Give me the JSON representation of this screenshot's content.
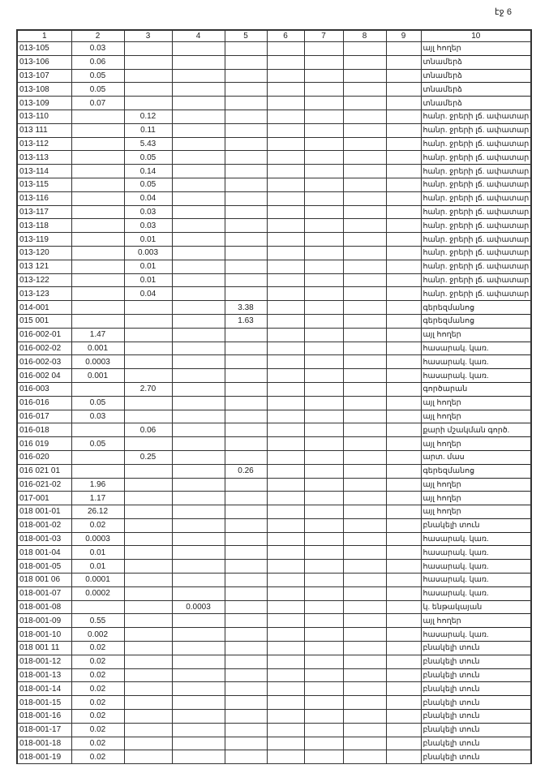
{
  "page_number": "էջ 6",
  "columns": [
    "1",
    "2",
    "3",
    "4",
    "5",
    "6",
    "7",
    "8",
    "9",
    "10"
  ],
  "rows": [
    [
      "013-105",
      "0.03",
      "",
      "",
      "",
      "",
      "",
      "",
      "",
      "այլ հողեր"
    ],
    [
      "013-106",
      "0.06",
      "",
      "",
      "",
      "",
      "",
      "",
      "",
      "տնամերձ"
    ],
    [
      "013-107",
      "0.05",
      "",
      "",
      "",
      "",
      "",
      "",
      "",
      "տնամերձ"
    ],
    [
      "013-108",
      "0.05",
      "",
      "",
      "",
      "",
      "",
      "",
      "",
      "տնամերձ"
    ],
    [
      "013-109",
      "0.07",
      "",
      "",
      "",
      "",
      "",
      "",
      "",
      "տնամերձ"
    ],
    [
      "013-110",
      "",
      "0.12",
      "",
      "",
      "",
      "",
      "",
      "",
      "հանր. ջրերի լճ. ափատար"
    ],
    [
      "013 111",
      "",
      "0.11",
      "",
      "",
      "",
      "",
      "",
      "",
      "հանր. ջրերի լճ. ափատար"
    ],
    [
      "013-112",
      "",
      "5.43",
      "",
      "",
      "",
      "",
      "",
      "",
      "հանր. ջրերի լճ. ափատար"
    ],
    [
      "013-113",
      "",
      "0.05",
      "",
      "",
      "",
      "",
      "",
      "",
      "հանր. ջրերի լճ. ափատար"
    ],
    [
      "013-114",
      "",
      "0.14",
      "",
      "",
      "",
      "",
      "",
      "",
      "հանր. ջրերի լճ. ափատար"
    ],
    [
      "013-115",
      "",
      "0.05",
      "",
      "",
      "",
      "",
      "",
      "",
      "հանր. ջրերի լճ. ափատար"
    ],
    [
      "013-116",
      "",
      "0.04",
      "",
      "",
      "",
      "",
      "",
      "",
      "հանր. ջրերի լճ. ափատար"
    ],
    [
      "013-117",
      "",
      "0.03",
      "",
      "",
      "",
      "",
      "",
      "",
      "հանր. ջրերի լճ. ափատար"
    ],
    [
      "013-118",
      "",
      "0.03",
      "",
      "",
      "",
      "",
      "",
      "",
      "հանր. ջրերի լճ. ափատար"
    ],
    [
      "013-119",
      "",
      "0.01",
      "",
      "",
      "",
      "",
      "",
      "",
      "հանր. ջրերի լճ. ափատար"
    ],
    [
      "013-120",
      "",
      "0.003",
      "",
      "",
      "",
      "",
      "",
      "",
      "հանր. ջրերի լճ. ափատար"
    ],
    [
      "013 121",
      "",
      "0.01",
      "",
      "",
      "",
      "",
      "",
      "",
      "հանր. ջրերի լճ. ափատար"
    ],
    [
      "013-122",
      "",
      "0.01",
      "",
      "",
      "",
      "",
      "",
      "",
      "հանր. ջրերի լճ. ափատար"
    ],
    [
      "013-123",
      "",
      "0.04",
      "",
      "",
      "",
      "",
      "",
      "",
      "հանր. ջրերի լճ. ափատար"
    ],
    [
      "014-001",
      "",
      "",
      "",
      "3.38",
      "",
      "",
      "",
      "",
      "գերեզմանոց"
    ],
    [
      "015 001",
      "",
      "",
      "",
      "1.63",
      "",
      "",
      "",
      "",
      "գերեզմանոց"
    ],
    [
      "016-002-01",
      "1.47",
      "",
      "",
      "",
      "",
      "",
      "",
      "",
      "այլ հողեր"
    ],
    [
      "016-002-02",
      "0.001",
      "",
      "",
      "",
      "",
      "",
      "",
      "",
      "հասարակ. կառ."
    ],
    [
      "016-002-03",
      "0.0003",
      "",
      "",
      "",
      "",
      "",
      "",
      "",
      "հասարակ. կառ."
    ],
    [
      "016-002 04",
      "0.001",
      "",
      "",
      "",
      "",
      "",
      "",
      "",
      "հասարակ. կառ."
    ],
    [
      "016-003",
      "",
      "2.70",
      "",
      "",
      "",
      "",
      "",
      "",
      "գործարան"
    ],
    [
      "016-016",
      "0.05",
      "",
      "",
      "",
      "",
      "",
      "",
      "",
      "այլ հողեր"
    ],
    [
      "016-017",
      "0.03",
      "",
      "",
      "",
      "",
      "",
      "",
      "",
      "այլ հողեր"
    ],
    [
      "016-018",
      "",
      "0.06",
      "",
      "",
      "",
      "",
      "",
      "",
      "քարի մշակման գործ."
    ],
    [
      "016 019",
      "0.05",
      "",
      "",
      "",
      "",
      "",
      "",
      "",
      "այլ հողեր"
    ],
    [
      "016-020",
      "",
      "0.25",
      "",
      "",
      "",
      "",
      "",
      "",
      "արտ. մաս"
    ],
    [
      "016 021 01",
      "",
      "",
      "",
      "0.26",
      "",
      "",
      "",
      "",
      "գերեզմանոց"
    ],
    [
      "016-021-02",
      "1.96",
      "",
      "",
      "",
      "",
      "",
      "",
      "",
      "այլ հողեր"
    ],
    [
      "017-001",
      "1.17",
      "",
      "",
      "",
      "",
      "",
      "",
      "",
      "այլ հողեր"
    ],
    [
      "018 001-01",
      "26.12",
      "",
      "",
      "",
      "",
      "",
      "",
      "",
      "այլ հողեր"
    ],
    [
      "018-001-02",
      "0.02",
      "",
      "",
      "",
      "",
      "",
      "",
      "",
      "բնակելի տուն"
    ],
    [
      "018-001-03",
      "0.0003",
      "",
      "",
      "",
      "",
      "",
      "",
      "",
      "հասարակ. կառ."
    ],
    [
      "018 001-04",
      "0.01",
      "",
      "",
      "",
      "",
      "",
      "",
      "",
      "հասարակ. կառ."
    ],
    [
      "018-001-05",
      "0.01",
      "",
      "",
      "",
      "",
      "",
      "",
      "",
      "հասարակ. կառ."
    ],
    [
      "018 001 06",
      "0.0001",
      "",
      "",
      "",
      "",
      "",
      "",
      "",
      "հասարակ. կառ."
    ],
    [
      "018-001-07",
      "0.0002",
      "",
      "",
      "",
      "",
      "",
      "",
      "",
      "հասարակ. կառ."
    ],
    [
      "018-001-08",
      "",
      "",
      "0.0003",
      "",
      "",
      "",
      "",
      "",
      "կ. ենթակայան"
    ],
    [
      "018-001-09",
      "0.55",
      "",
      "",
      "",
      "",
      "",
      "",
      "",
      "այլ հողեր"
    ],
    [
      "018-001-10",
      "0.002",
      "",
      "",
      "",
      "",
      "",
      "",
      "",
      "հասարակ. կառ."
    ],
    [
      "018 001 11",
      "0.02",
      "",
      "",
      "",
      "",
      "",
      "",
      "",
      "բնակելի տուն"
    ],
    [
      "018-001-12",
      "0.02",
      "",
      "",
      "",
      "",
      "",
      "",
      "",
      "բնակելի տուն"
    ],
    [
      "018-001-13",
      "0.02",
      "",
      "",
      "",
      "",
      "",
      "",
      "",
      "բնակելի տուն"
    ],
    [
      "018-001-14",
      "0.02",
      "",
      "",
      "",
      "",
      "",
      "",
      "",
      "բնակելի տուն"
    ],
    [
      "018-001-15",
      "0.02",
      "",
      "",
      "",
      "",
      "",
      "",
      "",
      "բնակելի տուն"
    ],
    [
      "018-001-16",
      "0.02",
      "",
      "",
      "",
      "",
      "",
      "",
      "",
      "բնակելի տուն"
    ],
    [
      "018-001-17",
      "0.02",
      "",
      "",
      "",
      "",
      "",
      "",
      "",
      "բնակելի տուն"
    ],
    [
      "018-001-18",
      "0.02",
      "",
      "",
      "",
      "",
      "",
      "",
      "",
      "բնակելի տուն"
    ],
    [
      "018-001-19",
      "0.02",
      "",
      "",
      "",
      "",
      "",
      "",
      "",
      "բնակելի տուն"
    ]
  ]
}
